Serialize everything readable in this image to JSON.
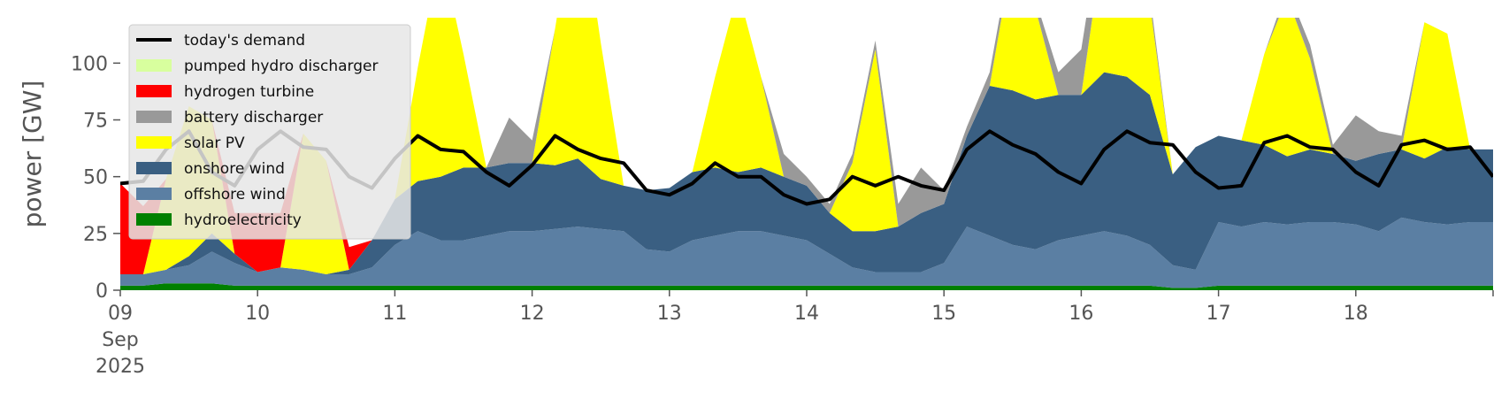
{
  "chart_data": {
    "type": "area",
    "title": "",
    "xlabel": "",
    "ylabel": "power [GW]",
    "ylim": [
      0,
      120
    ],
    "xlim": [
      0,
      240
    ],
    "y_ticks": [
      0,
      25,
      50,
      75,
      100
    ],
    "x_ticks": [
      {
        "label": "09",
        "sub": [
          "Sep",
          "2025"
        ],
        "hour": 0
      },
      {
        "label": "10",
        "hour": 24
      },
      {
        "label": "11",
        "hour": 48
      },
      {
        "label": "12",
        "hour": 72
      },
      {
        "label": "13",
        "hour": 96
      },
      {
        "label": "14",
        "hour": 120
      },
      {
        "label": "15",
        "hour": 144
      },
      {
        "label": "16",
        "hour": 168
      },
      {
        "label": "17",
        "hour": 192
      },
      {
        "label": "18",
        "hour": 216
      }
    ],
    "grid": false,
    "legend_position": "top-left",
    "x_hours": [
      0,
      4,
      8,
      12,
      16,
      20,
      24,
      28,
      32,
      36,
      40,
      44,
      48,
      52,
      56,
      60,
      64,
      68,
      72,
      76,
      80,
      84,
      88,
      92,
      96,
      100,
      104,
      108,
      112,
      116,
      120,
      124,
      128,
      132,
      136,
      140,
      144,
      148,
      152,
      156,
      160,
      164,
      168,
      172,
      176,
      180,
      184,
      188,
      192,
      196,
      200,
      204,
      208,
      212,
      216,
      220,
      224,
      228,
      232,
      236,
      240
    ],
    "stack_order": [
      "hydroelectricity",
      "offshore wind",
      "onshore wind",
      "solar PV",
      "battery discharger",
      "hydrogen turbine",
      "pumped hydro discharger"
    ],
    "series": [
      {
        "name": "hydroelectricity",
        "color": "#008000",
        "values": [
          2,
          2,
          3,
          3,
          3,
          2,
          2,
          2,
          2,
          2,
          2,
          2,
          2,
          2,
          2,
          2,
          2,
          2,
          2,
          2,
          2,
          2,
          2,
          2,
          2,
          2,
          2,
          2,
          2,
          2,
          2,
          2,
          2,
          2,
          2,
          2,
          2,
          2,
          2,
          2,
          2,
          2,
          2,
          2,
          2,
          2,
          1,
          1,
          2,
          2,
          2,
          2,
          2,
          2,
          2,
          2,
          2,
          2,
          2,
          2,
          2
        ]
      },
      {
        "name": "offshore wind",
        "color": "#5b7fa3",
        "values": [
          5,
          5,
          6,
          8,
          14,
          10,
          6,
          8,
          7,
          5,
          5,
          8,
          18,
          24,
          20,
          20,
          22,
          24,
          24,
          25,
          26,
          25,
          24,
          16,
          15,
          20,
          22,
          24,
          24,
          22,
          20,
          14,
          8,
          6,
          6,
          6,
          10,
          26,
          22,
          18,
          16,
          20,
          22,
          24,
          22,
          18,
          10,
          8,
          28,
          26,
          28,
          27,
          28,
          28,
          27,
          24,
          30,
          28,
          27,
          28,
          28
        ]
      },
      {
        "name": "onshore wind",
        "color": "#3a5f82",
        "values": [
          0,
          0,
          0,
          4,
          8,
          4,
          0,
          0,
          0,
          0,
          2,
          12,
          20,
          22,
          28,
          32,
          30,
          30,
          30,
          28,
          30,
          22,
          20,
          26,
          28,
          30,
          30,
          26,
          28,
          26,
          24,
          18,
          16,
          18,
          20,
          26,
          26,
          40,
          66,
          68,
          66,
          64,
          62,
          70,
          70,
          66,
          40,
          54,
          38,
          38,
          34,
          30,
          32,
          30,
          28,
          34,
          30,
          28,
          34,
          32,
          32
        ]
      },
      {
        "name": "solar PV",
        "color": "#ffff00",
        "values": [
          0,
          0,
          40,
          66,
          50,
          0,
          0,
          0,
          60,
          50,
          0,
          0,
          0,
          50,
          100,
          50,
          0,
          0,
          0,
          60,
          120,
          60,
          0,
          0,
          0,
          0,
          40,
          80,
          40,
          0,
          0,
          0,
          30,
          80,
          0,
          0,
          0,
          0,
          0,
          60,
          40,
          0,
          0,
          60,
          70,
          40,
          0,
          0,
          0,
          0,
          40,
          70,
          40,
          0,
          0,
          0,
          0,
          60,
          50,
          0,
          0
        ]
      },
      {
        "name": "battery discharger",
        "color": "#999999",
        "values": [
          0,
          0,
          0,
          0,
          0,
          0,
          0,
          0,
          0,
          0,
          0,
          0,
          0,
          0,
          0,
          0,
          0,
          20,
          10,
          0,
          0,
          0,
          0,
          0,
          0,
          0,
          0,
          0,
          0,
          10,
          4,
          4,
          4,
          4,
          10,
          20,
          6,
          4,
          6,
          4,
          4,
          10,
          20,
          14,
          6,
          4,
          0,
          0,
          0,
          0,
          0,
          4,
          6,
          4,
          20,
          10,
          6,
          0,
          0,
          0,
          0
        ]
      },
      {
        "name": "hydrogen turbine",
        "color": "#ff0000",
        "values": [
          40,
          30,
          0,
          0,
          0,
          18,
          26,
          24,
          0,
          0,
          10,
          0,
          0,
          0,
          0,
          0,
          0,
          0,
          0,
          0,
          0,
          0,
          0,
          0,
          0,
          0,
          0,
          0,
          0,
          0,
          0,
          0,
          0,
          0,
          0,
          0,
          0,
          0,
          0,
          0,
          0,
          0,
          0,
          0,
          0,
          0,
          0,
          0,
          0,
          0,
          0,
          0,
          0,
          0,
          0,
          0,
          0,
          0,
          0,
          0,
          0
        ]
      },
      {
        "name": "pumped hydro discharger",
        "color": "#d8ff9e",
        "values": [
          0,
          0,
          0,
          0,
          0,
          0,
          0,
          0,
          0,
          0,
          0,
          0,
          0,
          0,
          0,
          0,
          0,
          0,
          0,
          0,
          0,
          0,
          0,
          0,
          0,
          0,
          0,
          0,
          0,
          0,
          0,
          0,
          0,
          0,
          0,
          0,
          0,
          0,
          0,
          0,
          0,
          0,
          0,
          0,
          0,
          0,
          0,
          0,
          0,
          0,
          0,
          0,
          0,
          0,
          0,
          0,
          0,
          0,
          0,
          0,
          0
        ]
      }
    ],
    "demand": {
      "name": "today's demand",
      "color": "#000000",
      "values": [
        47,
        48,
        62,
        70,
        52,
        46,
        62,
        70,
        63,
        62,
        50,
        45,
        58,
        68,
        62,
        61,
        52,
        46,
        55,
        68,
        62,
        58,
        56,
        44,
        42,
        47,
        56,
        50,
        50,
        42,
        38,
        40,
        50,
        46,
        50,
        46,
        44,
        62,
        70,
        64,
        60,
        52,
        47,
        62,
        70,
        65,
        64,
        52,
        45,
        46,
        65,
        68,
        63,
        62,
        52,
        46,
        64,
        66,
        62,
        63,
        50
      ]
    },
    "legend": [
      {
        "label": "today's demand",
        "kind": "line",
        "color": "#000000"
      },
      {
        "label": "pumped hydro discharger",
        "kind": "patch",
        "color": "#d8ff9e"
      },
      {
        "label": "hydrogen turbine",
        "kind": "patch",
        "color": "#ff0000"
      },
      {
        "label": "battery discharger",
        "kind": "patch",
        "color": "#999999"
      },
      {
        "label": "solar PV",
        "kind": "patch",
        "color": "#ffff00"
      },
      {
        "label": "onshore wind",
        "kind": "patch",
        "color": "#3a5f82"
      },
      {
        "label": "offshore wind",
        "kind": "patch",
        "color": "#5b7fa3"
      },
      {
        "label": "hydroelectricity",
        "kind": "patch",
        "color": "#008000"
      }
    ]
  }
}
